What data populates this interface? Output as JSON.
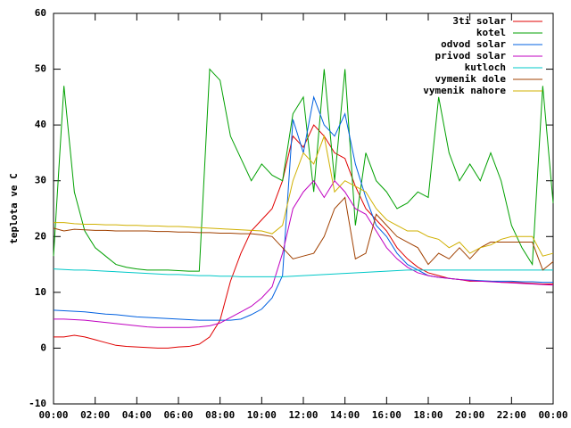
{
  "chart_data": {
    "type": "line",
    "ylabel": "teplota ve C",
    "x": [
      0,
      0.5,
      1,
      1.5,
      2,
      2.5,
      3,
      3.5,
      4,
      4.5,
      5,
      5.5,
      6,
      6.5,
      7,
      7.5,
      8,
      8.5,
      9,
      9.5,
      10,
      10.5,
      11,
      11.5,
      12,
      12.5,
      13,
      13.5,
      14,
      14.5,
      15,
      15.5,
      16,
      16.5,
      17,
      17.5,
      18,
      18.5,
      19,
      19.5,
      20,
      20.5,
      21,
      21.5,
      22,
      22.5,
      23,
      23.5,
      24
    ],
    "xlim": [
      0,
      24
    ],
    "xticks": [
      {
        "value": 0,
        "label": "00:00"
      },
      {
        "value": 2,
        "label": "02:00"
      },
      {
        "value": 4,
        "label": "04:00"
      },
      {
        "value": 6,
        "label": "06:00"
      },
      {
        "value": 8,
        "label": "08:00"
      },
      {
        "value": 10,
        "label": "10:00"
      },
      {
        "value": 12,
        "label": "12:00"
      },
      {
        "value": 14,
        "label": "14:00"
      },
      {
        "value": 16,
        "label": "16:00"
      },
      {
        "value": 18,
        "label": "18:00"
      },
      {
        "value": 20,
        "label": "20:00"
      },
      {
        "value": 22,
        "label": "22:00"
      },
      {
        "value": 24,
        "label": "00:00"
      }
    ],
    "ylim": [
      -10,
      60
    ],
    "yticks": [
      -10,
      0,
      10,
      20,
      30,
      40,
      50,
      60
    ],
    "legend": "top-right",
    "series": [
      {
        "name": "3ti solar",
        "color": "#e00000",
        "values": [
          2,
          2,
          2.3,
          2,
          1.5,
          1,
          0.5,
          0.3,
          0.2,
          0.1,
          0,
          0,
          0.2,
          0.3,
          0.7,
          2,
          5,
          12,
          17,
          21,
          23,
          25,
          30,
          38,
          36,
          40,
          38,
          35,
          34,
          29,
          25,
          23,
          21,
          18,
          16,
          14.5,
          13.5,
          13,
          12.5,
          12.3,
          12,
          12,
          12,
          11.8,
          11.8,
          11.7,
          11.6,
          11.5,
          11.5
        ]
      },
      {
        "name": "kotel",
        "color": "#00a000",
        "values": [
          16.5,
          47,
          28,
          21,
          18,
          16.5,
          15,
          14.5,
          14.2,
          14,
          14,
          14,
          13.9,
          13.8,
          13.8,
          50,
          48,
          38,
          34,
          30,
          33,
          31,
          30,
          42,
          45,
          28,
          50,
          30,
          50,
          22,
          35,
          30,
          28,
          25,
          26,
          28,
          27,
          45,
          35,
          30,
          33,
          30,
          35,
          30,
          22,
          18,
          15,
          47,
          26
        ]
      },
      {
        "name": "odvod solar",
        "color": "#0060e0",
        "values": [
          6.8,
          6.7,
          6.6,
          6.5,
          6.3,
          6.1,
          6,
          5.8,
          5.6,
          5.5,
          5.4,
          5.3,
          5.2,
          5.1,
          5,
          5,
          5,
          5,
          5.2,
          6,
          7,
          9,
          13,
          41,
          35,
          45,
          40,
          38,
          42,
          33,
          27,
          22,
          20,
          17,
          15,
          14,
          13,
          12.7,
          12.5,
          12.3,
          12.2,
          12.1,
          12,
          12,
          12,
          11.9,
          11.9,
          11.8,
          11.8
        ]
      },
      {
        "name": "privod solar",
        "color": "#c000c0",
        "values": [
          5.2,
          5.2,
          5.1,
          5,
          4.8,
          4.6,
          4.4,
          4.2,
          4,
          3.8,
          3.7,
          3.7,
          3.7,
          3.7,
          3.8,
          4,
          4.5,
          5.5,
          6.5,
          7.5,
          9,
          11,
          17,
          25,
          28,
          30,
          27,
          30,
          28,
          25,
          24,
          21,
          18,
          16,
          14.5,
          13.5,
          13,
          12.7,
          12.5,
          12.3,
          12.1,
          12,
          11.9,
          11.8,
          11.7,
          11.6,
          11.5,
          11.4,
          11.3
        ]
      },
      {
        "name": "kutloch",
        "color": "#00c8c8",
        "values": [
          14.2,
          14.1,
          14,
          14,
          13.9,
          13.8,
          13.7,
          13.6,
          13.5,
          13.4,
          13.3,
          13.2,
          13.2,
          13.1,
          13,
          13,
          12.9,
          12.9,
          12.8,
          12.8,
          12.8,
          12.8,
          12.8,
          12.9,
          13,
          13.1,
          13.2,
          13.3,
          13.4,
          13.5,
          13.6,
          13.7,
          13.8,
          13.9,
          14,
          14,
          14,
          14,
          14,
          14,
          14,
          14,
          14,
          14,
          14,
          14,
          14,
          14,
          14
        ]
      },
      {
        "name": "vymenik dole",
        "color": "#a04000",
        "values": [
          21.5,
          21,
          21.3,
          21.2,
          21.1,
          21.1,
          21,
          21,
          21,
          21,
          20.9,
          20.9,
          20.8,
          20.8,
          20.7,
          20.7,
          20.6,
          20.6,
          20.5,
          20.5,
          20.3,
          20,
          18,
          16,
          16.5,
          17,
          20,
          25,
          27,
          16,
          17,
          24,
          22,
          20,
          19,
          18,
          15,
          17,
          16,
          18,
          16,
          18,
          19,
          19,
          19,
          19,
          19,
          14,
          15.5
        ]
      },
      {
        "name": "vymenik nahore",
        "color": "#d0b000",
        "values": [
          22.5,
          22.5,
          22.3,
          22.2,
          22.2,
          22.1,
          22.1,
          22,
          22,
          21.9,
          21.9,
          21.8,
          21.8,
          21.7,
          21.6,
          21.5,
          21.4,
          21.3,
          21.2,
          21.1,
          21,
          20.5,
          22,
          30,
          35,
          33,
          38,
          28,
          30,
          29,
          28,
          25,
          23,
          22,
          21,
          21,
          20,
          19.5,
          18,
          19,
          17,
          18,
          18.5,
          19.5,
          20,
          20,
          20,
          16.5,
          17
        ]
      }
    ]
  }
}
